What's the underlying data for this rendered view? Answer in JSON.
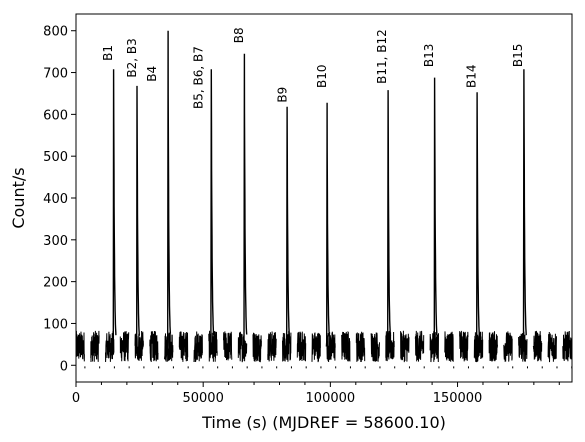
{
  "chart_data": {
    "type": "line",
    "title": "",
    "xlabel": "Time (s) (MJDREF = 58600.10)",
    "ylabel": "Count/s",
    "xlim": [
      0,
      195000
    ],
    "ylim": [
      -40,
      840
    ],
    "x_ticks": [
      {
        "value": 0,
        "label": "0"
      },
      {
        "value": 50000,
        "label": "50000"
      },
      {
        "value": 100000,
        "label": "100000"
      },
      {
        "value": 150000,
        "label": "150000"
      }
    ],
    "x_minor_ticks": [
      10000,
      20000,
      30000,
      40000,
      60000,
      70000,
      80000,
      90000,
      110000,
      120000,
      130000,
      140000,
      160000,
      170000,
      180000,
      190000
    ],
    "y_ticks": [
      {
        "value": 0,
        "label": "0"
      },
      {
        "value": 100,
        "label": "100"
      },
      {
        "value": 200,
        "label": "200"
      },
      {
        "value": 300,
        "label": "300"
      },
      {
        "value": 400,
        "label": "400"
      },
      {
        "value": 500,
        "label": "500"
      },
      {
        "value": 600,
        "label": "600"
      },
      {
        "value": 700,
        "label": "700"
      },
      {
        "value": 800,
        "label": "800"
      }
    ],
    "grid": false,
    "legend": "none",
    "line_color": "#000000",
    "baseline_level": 45,
    "orbit_segments": [
      [
        0,
        3300
      ],
      [
        5800,
        9100
      ],
      [
        11600,
        14900
      ],
      [
        17400,
        20700
      ],
      [
        23200,
        26500
      ],
      [
        29000,
        32300
      ],
      [
        34800,
        38100
      ],
      [
        40600,
        43900
      ],
      [
        46400,
        49700
      ],
      [
        52200,
        55500
      ],
      [
        58000,
        61300
      ],
      [
        63800,
        67100
      ],
      [
        69600,
        72900
      ],
      [
        75400,
        78700
      ],
      [
        81200,
        84500
      ],
      [
        87000,
        90300
      ],
      [
        92800,
        96100
      ],
      [
        98600,
        101900
      ],
      [
        104400,
        107700
      ],
      [
        110200,
        113500
      ],
      [
        116000,
        119300
      ],
      [
        121800,
        125100
      ],
      [
        127600,
        130900
      ],
      [
        133400,
        136700
      ],
      [
        139200,
        142500
      ],
      [
        145000,
        148300
      ],
      [
        150800,
        154100
      ],
      [
        156600,
        159900
      ],
      [
        162400,
        165700
      ],
      [
        168200,
        171500
      ],
      [
        174000,
        177300
      ],
      [
        179800,
        183100
      ],
      [
        185600,
        188900
      ],
      [
        191400,
        194700
      ]
    ],
    "bursts": [
      {
        "t": 14800,
        "peak": 708
      },
      {
        "t": 24000,
        "peak": 668
      },
      {
        "t": 36200,
        "peak": 800
      },
      {
        "t": 53200,
        "peak": 708
      },
      {
        "t": 66200,
        "peak": 745
      },
      {
        "t": 83000,
        "peak": 618
      },
      {
        "t": 98700,
        "peak": 628
      },
      {
        "t": 122700,
        "peak": 658
      },
      {
        "t": 141000,
        "peak": 688
      },
      {
        "t": 157700,
        "peak": 653
      },
      {
        "t": 176100,
        "peak": 708
      }
    ],
    "annotations": [
      {
        "text": "B1",
        "x": 14200,
        "y": 728
      },
      {
        "text": "B2, B3",
        "x": 23500,
        "y": 688
      },
      {
        "text": "B4",
        "x": 31500,
        "y": 678
      },
      {
        "text": "B5, B6, B7",
        "x": 49800,
        "y": 613
      },
      {
        "text": "B8",
        "x": 65600,
        "y": 770
      },
      {
        "text": "B9",
        "x": 82700,
        "y": 628
      },
      {
        "text": "B10",
        "x": 98300,
        "y": 663
      },
      {
        "text": "B11, B12",
        "x": 121800,
        "y": 673
      },
      {
        "text": "B13",
        "x": 140300,
        "y": 713
      },
      {
        "text": "B14",
        "x": 157000,
        "y": 663
      },
      {
        "text": "B15",
        "x": 175400,
        "y": 713
      }
    ]
  }
}
